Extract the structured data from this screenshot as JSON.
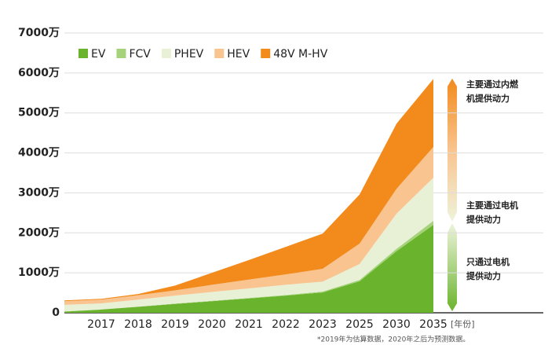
{
  "chart_data": {
    "type": "stacked_area",
    "categories": [
      null,
      "2017",
      "2018",
      "2019",
      "2020",
      "2021",
      "2022",
      "2023",
      "2025",
      "2030",
      "2035"
    ],
    "x_label": "[年份]",
    "series": [
      {
        "name": "EV",
        "color": "#6ab42d",
        "values": [
          30,
          80,
          150,
          220,
          290,
          360,
          430,
          510,
          790,
          1540,
          2200
        ]
      },
      {
        "name": "FCV",
        "color": "#a5d27a",
        "values": [
          5,
          5,
          5,
          10,
          10,
          10,
          15,
          20,
          30,
          60,
          100
        ]
      },
      {
        "name": "PHEV",
        "color": "#e8f1d6",
        "values": [
          165,
          150,
          175,
          200,
          220,
          240,
          255,
          250,
          400,
          880,
          1080
        ]
      },
      {
        "name": "HEV",
        "color": "#f9c48f",
        "values": [
          90,
          95,
          110,
          130,
          180,
          220,
          260,
          320,
          510,
          620,
          770
        ]
      },
      {
        "name": "48V M-HV",
        "color": "#f28a1c",
        "values": [
          20,
          20,
          30,
          120,
          300,
          490,
          690,
          880,
          1230,
          1630,
          1700
        ]
      }
    ],
    "ylim": [
      0,
      7000
    ],
    "yticks": [
      0,
      {
        "value": 1000,
        "label": "1000万"
      },
      {
        "value": 2000,
        "label": "2000万"
      },
      {
        "value": 3000,
        "label": "3000万"
      },
      {
        "value": 4000,
        "label": "4000万"
      },
      {
        "value": 5000,
        "label": "5000万"
      },
      {
        "value": 6000,
        "label": "6000万"
      },
      {
        "value": 7000,
        "label": "7000万"
      }
    ],
    "grid": true,
    "legend": "top-left",
    "annotations": [
      [
        "主要通过内燃",
        "机提供动力"
      ],
      [
        "主要通过电机",
        "提供动力"
      ],
      [
        "只通过电机",
        "提供动力"
      ]
    ],
    "footnote": "*2019年为估算数据，2020年之后为预测数据。"
  }
}
